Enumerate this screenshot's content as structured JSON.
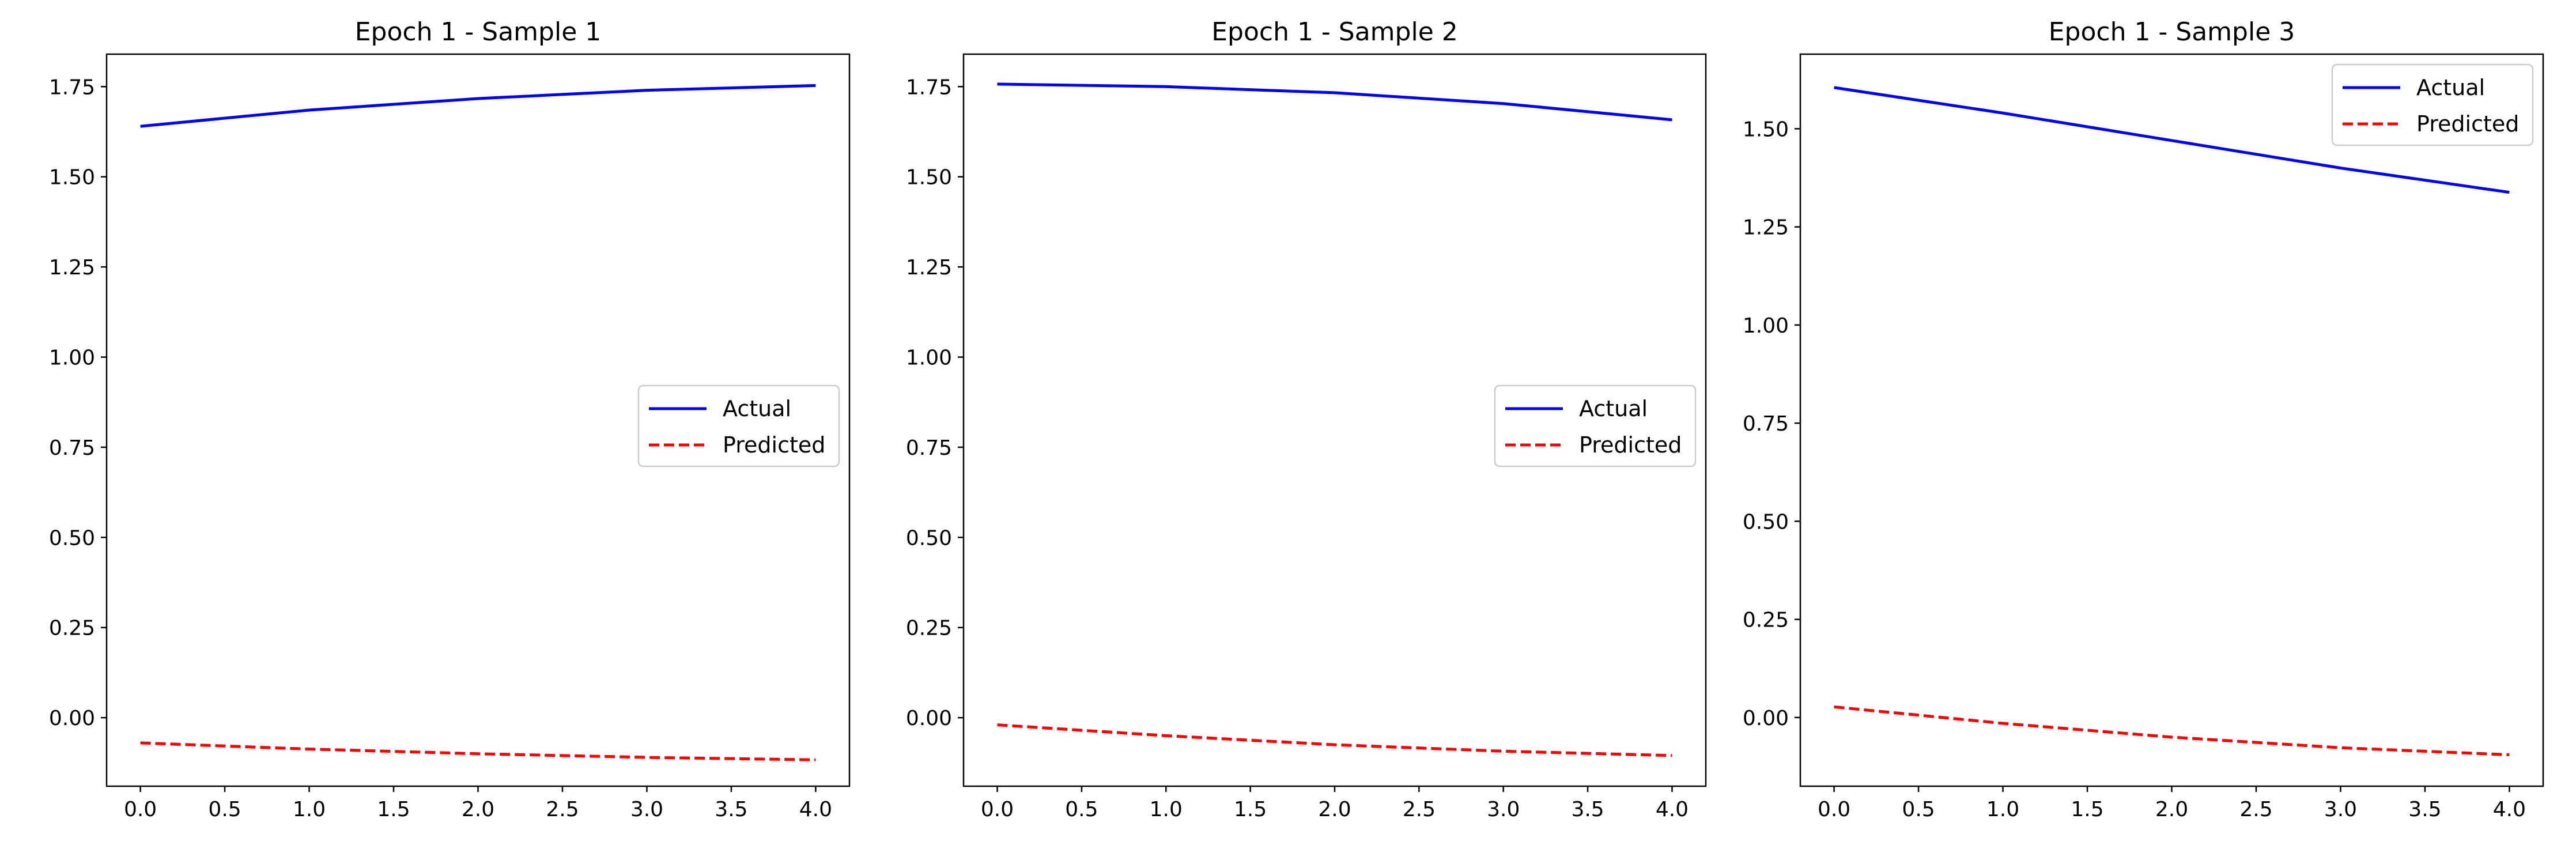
{
  "colors": {
    "actual": "#0000ff",
    "predicted": "#ff0000",
    "axes": "#000000",
    "legend_border": "#cccccc"
  },
  "chart_data": [
    {
      "type": "line",
      "title": "Epoch 1 - Sample 1",
      "xlabel": "",
      "ylabel": "",
      "grid": false,
      "legend": "center-right",
      "xlim": [
        -0.2,
        4.2
      ],
      "ylim": [
        -0.19,
        1.84
      ],
      "xticks": [
        0.0,
        0.5,
        1.0,
        1.5,
        2.0,
        2.5,
        3.0,
        3.5,
        4.0
      ],
      "xtick_labels": [
        "0.0",
        "0.5",
        "1.0",
        "1.5",
        "2.0",
        "2.5",
        "3.0",
        "3.5",
        "4.0"
      ],
      "yticks": [
        0.0,
        0.25,
        0.5,
        0.75,
        1.0,
        1.25,
        1.5,
        1.75
      ],
      "ytick_labels": [
        "0.00",
        "0.25",
        "0.50",
        "0.75",
        "1.00",
        "1.25",
        "1.50",
        "1.75"
      ],
      "series": [
        {
          "name": "Actual",
          "style": "solid",
          "x": [
            0,
            1,
            2,
            3,
            4
          ],
          "y": [
            1.64,
            1.685,
            1.717,
            1.74,
            1.753
          ]
        },
        {
          "name": "Predicted",
          "style": "dashed",
          "x": [
            0,
            1,
            2,
            3,
            4
          ],
          "y": [
            -0.07,
            -0.087,
            -0.1,
            -0.11,
            -0.117
          ]
        }
      ]
    },
    {
      "type": "line",
      "title": "Epoch 1 - Sample 2",
      "xlabel": "",
      "ylabel": "",
      "grid": false,
      "legend": "center-right",
      "xlim": [
        -0.2,
        4.2
      ],
      "ylim": [
        -0.19,
        1.84
      ],
      "xticks": [
        0.0,
        0.5,
        1.0,
        1.5,
        2.0,
        2.5,
        3.0,
        3.5,
        4.0
      ],
      "xtick_labels": [
        "0.0",
        "0.5",
        "1.0",
        "1.5",
        "2.0",
        "2.5",
        "3.0",
        "3.5",
        "4.0"
      ],
      "yticks": [
        0.0,
        0.25,
        0.5,
        0.75,
        1.0,
        1.25,
        1.5,
        1.75
      ],
      "ytick_labels": [
        "0.00",
        "0.25",
        "0.50",
        "0.75",
        "1.00",
        "1.25",
        "1.50",
        "1.75"
      ],
      "series": [
        {
          "name": "Actual",
          "style": "solid",
          "x": [
            0,
            1,
            2,
            3,
            4
          ],
          "y": [
            1.757,
            1.75,
            1.733,
            1.703,
            1.658
          ]
        },
        {
          "name": "Predicted",
          "style": "dashed",
          "x": [
            0,
            1,
            2,
            3,
            4
          ],
          "y": [
            -0.02,
            -0.05,
            -0.075,
            -0.093,
            -0.105
          ]
        }
      ]
    },
    {
      "type": "line",
      "title": "Epoch 1 - Sample 3",
      "xlabel": "",
      "ylabel": "",
      "grid": false,
      "legend": "top-right",
      "xlim": [
        -0.2,
        4.2
      ],
      "ylim": [
        -0.175,
        1.69
      ],
      "xticks": [
        0.0,
        0.5,
        1.0,
        1.5,
        2.0,
        2.5,
        3.0,
        3.5,
        4.0
      ],
      "xtick_labels": [
        "0.0",
        "0.5",
        "1.0",
        "1.5",
        "2.0",
        "2.5",
        "3.0",
        "3.5",
        "4.0"
      ],
      "yticks": [
        0.0,
        0.25,
        0.5,
        0.75,
        1.0,
        1.25,
        1.5
      ],
      "ytick_labels": [
        "0.00",
        "0.25",
        "0.50",
        "0.75",
        "1.00",
        "1.25",
        "1.50"
      ],
      "series": [
        {
          "name": "Actual",
          "style": "solid",
          "x": [
            0,
            1,
            2,
            3,
            4
          ],
          "y": [
            1.605,
            1.54,
            1.47,
            1.4,
            1.338
          ]
        },
        {
          "name": "Predicted",
          "style": "dashed",
          "x": [
            0,
            1,
            2,
            3,
            4
          ],
          "y": [
            0.027,
            -0.015,
            -0.05,
            -0.077,
            -0.095
          ]
        }
      ]
    }
  ]
}
